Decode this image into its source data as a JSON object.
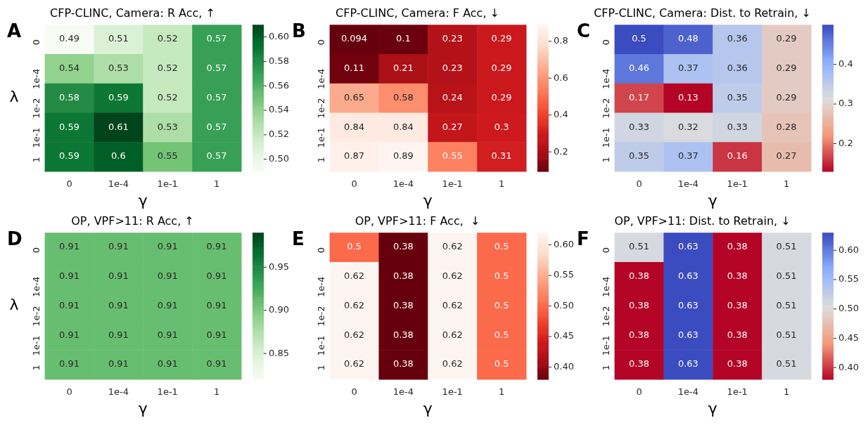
{
  "chart_data": [
    {
      "type": "heatmap",
      "title": "CFP-CLINC, Camera: R Acc, ↑",
      "xlabel": "γ",
      "ylabel": "λ",
      "annotations": [
        "A"
      ],
      "categories": [
        "0",
        "1e-4",
        "1e-1",
        "1"
      ],
      "y_categories": [
        "0",
        "1e-4",
        "1e-2",
        "1e-1",
        "1"
      ],
      "cells": [
        [
          0.49,
          0.51,
          0.52,
          0.57
        ],
        [
          0.54,
          0.53,
          0.52,
          0.57
        ],
        [
          0.58,
          0.59,
          0.52,
          0.57
        ],
        [
          0.59,
          0.61,
          0.53,
          0.57
        ],
        [
          0.59,
          0.6,
          0.55,
          0.57
        ]
      ],
      "clim": [
        0.49,
        0.61
      ],
      "cticks": [
        {
          "value": 0.5,
          "label": "0.50"
        },
        {
          "value": 0.52,
          "label": "0.52"
        },
        {
          "value": 0.54,
          "label": "0.54"
        },
        {
          "value": 0.56,
          "label": "0.56"
        },
        {
          "value": 0.58,
          "label": "0.58"
        },
        {
          "value": 0.6,
          "label": "0.60"
        }
      ],
      "data_labels": true
    },
    {
      "type": "heatmap",
      "title": "CFP-CLINC, Camera: F Acc, ↓",
      "xlabel": "γ",
      "annotations": [
        "B"
      ],
      "categories": [
        "0",
        "1e-4",
        "1e-1",
        "1"
      ],
      "y_categories": [
        "0",
        "1e-4",
        "1e-2",
        "1e-1",
        "1"
      ],
      "cells": [
        [
          0.094,
          0.1,
          0.23,
          0.29
        ],
        [
          0.11,
          0.21,
          0.23,
          0.29
        ],
        [
          0.65,
          0.58,
          0.24,
          0.29
        ],
        [
          0.84,
          0.84,
          0.27,
          0.3
        ],
        [
          0.87,
          0.89,
          0.55,
          0.31
        ]
      ],
      "clim": [
        0.094,
        0.89
      ],
      "cticks": [
        0.2,
        0.4,
        0.6,
        0.8
      ],
      "data_labels": true
    },
    {
      "type": "heatmap",
      "title": "CFP-CLINC, Camera: Dist. to Retrain, ↓",
      "xlabel": "γ",
      "annotations": [
        "C"
      ],
      "categories": [
        "0",
        "1e-4",
        "1e-1",
        "1"
      ],
      "y_categories": [
        "0",
        "1e-4",
        "1e-2",
        "1e-1",
        "1"
      ],
      "cells": [
        [
          0.5,
          0.48,
          0.36,
          0.29
        ],
        [
          0.46,
          0.37,
          0.36,
          0.29
        ],
        [
          0.17,
          0.13,
          0.35,
          0.29
        ],
        [
          0.33,
          0.32,
          0.33,
          0.28
        ],
        [
          0.35,
          0.37,
          0.16,
          0.27
        ]
      ],
      "clim": [
        0.13,
        0.5
      ],
      "cticks": [
        0.2,
        0.3,
        0.4
      ],
      "data_labels": true
    },
    {
      "type": "heatmap",
      "title": "OP, VPF>11: R Acc, ↑",
      "xlabel": "γ",
      "ylabel": "λ",
      "annotations": [
        "D"
      ],
      "categories": [
        "0",
        "1e-4",
        "1e-1",
        "1"
      ],
      "y_categories": [
        "0",
        "1e-4",
        "1e-2",
        "1e-1",
        "1"
      ],
      "cells": [
        [
          0.91,
          0.91,
          0.91,
          0.91
        ],
        [
          0.91,
          0.91,
          0.91,
          0.91
        ],
        [
          0.91,
          0.91,
          0.91,
          0.91
        ],
        [
          0.91,
          0.91,
          0.91,
          0.91
        ],
        [
          0.91,
          0.91,
          0.91,
          0.91
        ]
      ],
      "clim": [
        0.82,
        0.99
      ],
      "cticks": [
        {
          "value": 0.85,
          "label": "0.85"
        },
        {
          "value": 0.9,
          "label": "0.90"
        },
        {
          "value": 0.95,
          "label": "0.95"
        }
      ],
      "data_labels": true
    },
    {
      "type": "heatmap",
      "title": "OP, VPF>11: F Acc,  ↓",
      "xlabel": "γ",
      "annotations": [
        "E"
      ],
      "categories": [
        "0",
        "1e-4",
        "1e-1",
        "1"
      ],
      "y_categories": [
        "0",
        "1e-4",
        "1e-2",
        "1e-1",
        "1"
      ],
      "cells": [
        [
          0.5,
          0.38,
          0.62,
          0.5
        ],
        [
          0.62,
          0.38,
          0.62,
          0.5
        ],
        [
          0.62,
          0.38,
          0.62,
          0.5
        ],
        [
          0.62,
          0.38,
          0.62,
          0.5
        ],
        [
          0.62,
          0.38,
          0.62,
          0.5
        ]
      ],
      "clim": [
        0.38,
        0.62
      ],
      "cticks": [
        {
          "value": 0.4,
          "label": "0.40"
        },
        {
          "value": 0.45,
          "label": "0.45"
        },
        {
          "value": 0.5,
          "label": "0.50"
        },
        {
          "value": 0.55,
          "label": "0.55"
        },
        {
          "value": 0.6,
          "label": "0.60"
        }
      ],
      "data_labels": true
    },
    {
      "type": "heatmap",
      "title": "OP, VPF>11: Dist. to Retrain, ↓",
      "xlabel": "γ",
      "annotations": [
        "F"
      ],
      "categories": [
        "0",
        "1e-4",
        "1e-1",
        "1"
      ],
      "y_categories": [
        "0",
        "1e-4",
        "1e-2",
        "1e-1",
        "1"
      ],
      "cells": [
        [
          0.51,
          0.63,
          0.38,
          0.51
        ],
        [
          0.38,
          0.63,
          0.38,
          0.51
        ],
        [
          0.38,
          0.63,
          0.38,
          0.51
        ],
        [
          0.38,
          0.63,
          0.38,
          0.51
        ],
        [
          0.38,
          0.63,
          0.38,
          0.51
        ]
      ],
      "clim": [
        0.38,
        0.63
      ],
      "cticks": [
        {
          "value": 0.4,
          "label": "0.40"
        },
        {
          "value": 0.45,
          "label": "0.45"
        },
        {
          "value": 0.5,
          "label": "0.50"
        },
        {
          "value": 0.55,
          "label": "0.55"
        },
        {
          "value": 0.6,
          "label": "0.60"
        }
      ],
      "data_labels": true
    }
  ]
}
